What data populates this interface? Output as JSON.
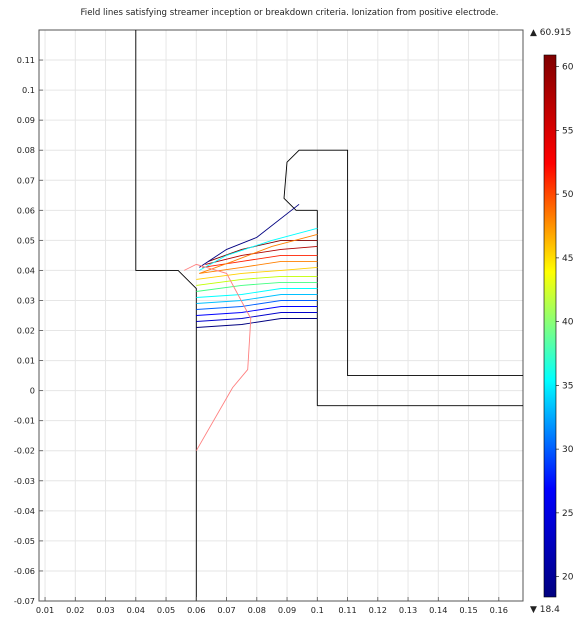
{
  "chart_data": {
    "type": "line",
    "title": "Field lines satisfying streamer inception or breakdown criteria. Ionization from positive electrode.",
    "xlim": [
      0.008,
      0.168
    ],
    "ylim": [
      -0.07,
      0.12
    ],
    "xticks": [
      "0.01",
      "0.02",
      "0.03",
      "0.04",
      "0.05",
      "0.06",
      "0.07",
      "0.08",
      "0.09",
      "0.1",
      "0.11",
      "0.12",
      "0.13",
      "0.14",
      "0.15",
      "0.16"
    ],
    "yticks": [
      "0.11",
      "0.1",
      "0.09",
      "0.08",
      "0.07",
      "0.06",
      "0.05",
      "0.04",
      "0.03",
      "0.02",
      "0.01",
      "0",
      "-0.01",
      "-0.02",
      "-0.03",
      "-0.04",
      "-0.05",
      "-0.06",
      "-0.07"
    ],
    "grid": true,
    "colorbar": {
      "max_label": "▲ 60.915",
      "min_label": "▼ 18.4",
      "min": 18.4,
      "max": 60.915,
      "ticks": [
        "20",
        "25",
        "30",
        "35",
        "40",
        "45",
        "50",
        "55",
        "60"
      ],
      "colormap": [
        "#00007f",
        "#0000ff",
        "#00ffff",
        "#ffff00",
        "#ff0000",
        "#7f0000"
      ]
    },
    "geometry": {
      "outer_electrode": [
        [
          0.04,
          0.12
        ],
        [
          0.04,
          0.04
        ],
        [
          0.054,
          0.04
        ],
        [
          0.06,
          0.034
        ],
        [
          0.06,
          -0.07
        ]
      ],
      "inner_electrode": [
        [
          0.1,
          -0.005
        ],
        [
          0.168,
          -0.005
        ]
      ],
      "inner_vertical": [
        [
          0.1,
          0.06
        ],
        [
          0.1,
          -0.005
        ]
      ],
      "bushing": [
        [
          0.168,
          0.005
        ],
        [
          0.11,
          0.005
        ],
        [
          0.11,
          0.08
        ],
        [
          0.094,
          0.08
        ],
        [
          0.09,
          0.076
        ],
        [
          0.089,
          0.064
        ],
        [
          0.093,
          0.06
        ],
        [
          0.1,
          0.06
        ]
      ]
    },
    "series": [
      {
        "color": "#000080",
        "values": [
          [
            0.06,
            0.021
          ],
          [
            0.075,
            0.022
          ],
          [
            0.088,
            0.024
          ],
          [
            0.1,
            0.024
          ]
        ]
      },
      {
        "color": "#0000cc",
        "values": [
          [
            0.06,
            0.023
          ],
          [
            0.075,
            0.024
          ],
          [
            0.088,
            0.026
          ],
          [
            0.1,
            0.026
          ]
        ]
      },
      {
        "color": "#0000ff",
        "values": [
          [
            0.06,
            0.025
          ],
          [
            0.075,
            0.026
          ],
          [
            0.088,
            0.028
          ],
          [
            0.1,
            0.028
          ]
        ]
      },
      {
        "color": "#0060ff",
        "values": [
          [
            0.06,
            0.027
          ],
          [
            0.075,
            0.028
          ],
          [
            0.088,
            0.03
          ],
          [
            0.1,
            0.03
          ]
        ]
      },
      {
        "color": "#00c0ff",
        "values": [
          [
            0.06,
            0.029
          ],
          [
            0.075,
            0.03
          ],
          [
            0.088,
            0.032
          ],
          [
            0.1,
            0.032
          ]
        ]
      },
      {
        "color": "#00ffff",
        "values": [
          [
            0.06,
            0.031
          ],
          [
            0.075,
            0.032
          ],
          [
            0.088,
            0.034
          ],
          [
            0.1,
            0.034
          ]
        ]
      },
      {
        "color": "#40ff80",
        "values": [
          [
            0.06,
            0.033
          ],
          [
            0.075,
            0.035
          ],
          [
            0.088,
            0.036
          ],
          [
            0.1,
            0.036
          ]
        ]
      },
      {
        "color": "#c0ff00",
        "values": [
          [
            0.06,
            0.035
          ],
          [
            0.075,
            0.037
          ],
          [
            0.088,
            0.038
          ],
          [
            0.1,
            0.038
          ]
        ]
      },
      {
        "color": "#ffd000",
        "values": [
          [
            0.06,
            0.037
          ],
          [
            0.075,
            0.039
          ],
          [
            0.088,
            0.04
          ],
          [
            0.1,
            0.041
          ]
        ]
      },
      {
        "color": "#ff8000",
        "values": [
          [
            0.061,
            0.039
          ],
          [
            0.075,
            0.041
          ],
          [
            0.088,
            0.043
          ],
          [
            0.1,
            0.043
          ]
        ]
      },
      {
        "color": "#ff2000",
        "values": [
          [
            0.062,
            0.041
          ],
          [
            0.075,
            0.043
          ],
          [
            0.088,
            0.045
          ],
          [
            0.1,
            0.045
          ]
        ]
      },
      {
        "color": "#b00000",
        "values": [
          [
            0.063,
            0.042
          ],
          [
            0.075,
            0.045
          ],
          [
            0.088,
            0.047
          ],
          [
            0.1,
            0.048
          ]
        ]
      },
      {
        "color": "#7f0000",
        "values": [
          [
            0.064,
            0.043
          ],
          [
            0.075,
            0.047
          ],
          [
            0.088,
            0.05
          ],
          [
            0.1,
            0.05
          ]
        ]
      },
      {
        "color": "#000080",
        "values": [
          [
            0.061,
            0.041
          ],
          [
            0.07,
            0.047
          ],
          [
            0.08,
            0.051
          ],
          [
            0.094,
            0.062
          ]
        ]
      },
      {
        "color": "#00ffff",
        "values": [
          [
            0.061,
            0.04
          ],
          [
            0.07,
            0.045
          ],
          [
            0.085,
            0.05
          ],
          [
            0.1,
            0.054
          ]
        ]
      },
      {
        "color": "#ff8000",
        "values": [
          [
            0.061,
            0.039
          ],
          [
            0.072,
            0.043
          ],
          [
            0.085,
            0.048
          ],
          [
            0.1,
            0.052
          ]
        ]
      },
      {
        "color": "#ff8080",
        "values": [
          [
            0.06,
            -0.02
          ],
          [
            0.072,
            0.001
          ],
          [
            0.077,
            0.007
          ],
          [
            0.078,
            0.024
          ],
          [
            0.07,
            0.039
          ],
          [
            0.06,
            0.042
          ],
          [
            0.056,
            0.04
          ]
        ]
      }
    ]
  }
}
